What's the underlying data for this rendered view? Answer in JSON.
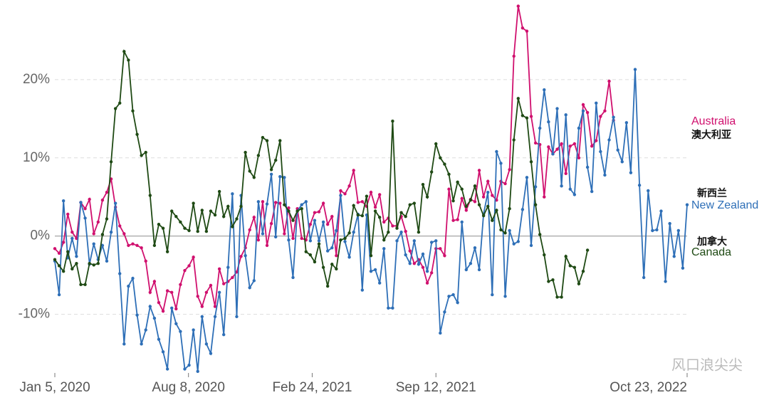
{
  "chart_data": {
    "type": "line",
    "xlim": [
      "2020-01-05",
      "2022-10-23"
    ],
    "xticks": [
      {
        "value": "2020-01-05",
        "label": "Jan 5, 2020"
      },
      {
        "value": "2020-08-08",
        "label": "Aug 8, 2020"
      },
      {
        "value": "2021-02-24",
        "label": "Feb 24, 2021"
      },
      {
        "value": "2021-09-12",
        "label": "Sep 12, 2021"
      },
      {
        "value": "2022-10-23",
        "label": "Oct 23, 2022"
      }
    ],
    "ylim": [
      -17.5,
      30
    ],
    "yticks": [
      {
        "value": -10,
        "label": "-10%"
      },
      {
        "value": 0,
        "label": "0%"
      },
      {
        "value": 10,
        "label": "10%"
      },
      {
        "value": 20,
        "label": "20%"
      }
    ],
    "grid": true,
    "watermark": "风口浪尖尖",
    "x": [
      "2020-01-05",
      "2020-01-12",
      "2020-01-19",
      "2020-01-26",
      "2020-02-02",
      "2020-02-09",
      "2020-02-16",
      "2020-02-23",
      "2020-03-01",
      "2020-03-08",
      "2020-03-15",
      "2020-03-22",
      "2020-03-29",
      "2020-04-05",
      "2020-04-12",
      "2020-04-19",
      "2020-04-26",
      "2020-05-03",
      "2020-05-10",
      "2020-05-17",
      "2020-05-24",
      "2020-05-31",
      "2020-06-07",
      "2020-06-14",
      "2020-06-21",
      "2020-06-28",
      "2020-07-05",
      "2020-07-12",
      "2020-07-19",
      "2020-07-26",
      "2020-08-02",
      "2020-08-09",
      "2020-08-16",
      "2020-08-23",
      "2020-08-30",
      "2020-09-06",
      "2020-09-13",
      "2020-09-20",
      "2020-09-27",
      "2020-10-04",
      "2020-10-11",
      "2020-10-18",
      "2020-10-25",
      "2020-11-01",
      "2020-11-08",
      "2020-11-15",
      "2020-11-22",
      "2020-11-29",
      "2020-12-06",
      "2020-12-13",
      "2020-12-20",
      "2020-12-27",
      "2021-01-03",
      "2021-01-10",
      "2021-01-17",
      "2021-01-24",
      "2021-01-31",
      "2021-02-07",
      "2021-02-14",
      "2021-02-21",
      "2021-02-28",
      "2021-03-07",
      "2021-03-14",
      "2021-03-21",
      "2021-03-28",
      "2021-04-04",
      "2021-04-11",
      "2021-04-18",
      "2021-04-25",
      "2021-05-02",
      "2021-05-09",
      "2021-05-16",
      "2021-05-23",
      "2021-05-30",
      "2021-06-06",
      "2021-06-13",
      "2021-06-20",
      "2021-06-27",
      "2021-07-04",
      "2021-07-11",
      "2021-07-18",
      "2021-07-25",
      "2021-08-01",
      "2021-08-08",
      "2021-08-15",
      "2021-08-22",
      "2021-08-29",
      "2021-09-05",
      "2021-09-12",
      "2021-09-19",
      "2021-09-26",
      "2021-10-03",
      "2021-10-10",
      "2021-10-17",
      "2021-10-24",
      "2021-10-31",
      "2021-11-07",
      "2021-11-14",
      "2021-11-21",
      "2021-11-28",
      "2021-12-05",
      "2021-12-12",
      "2021-12-19",
      "2021-12-26",
      "2022-01-02",
      "2022-01-09",
      "2022-01-16",
      "2022-01-23",
      "2022-01-30",
      "2022-02-06",
      "2022-02-13",
      "2022-02-20",
      "2022-02-27",
      "2022-03-06",
      "2022-03-13",
      "2022-03-20",
      "2022-03-27",
      "2022-04-03",
      "2022-04-10",
      "2022-04-17",
      "2022-04-24",
      "2022-05-01",
      "2022-05-08",
      "2022-05-15",
      "2022-05-22",
      "2022-05-29",
      "2022-06-05",
      "2022-06-12",
      "2022-06-19",
      "2022-06-26",
      "2022-07-03",
      "2022-07-10",
      "2022-07-17",
      "2022-07-24",
      "2022-07-31",
      "2022-08-07",
      "2022-08-14",
      "2022-08-21",
      "2022-08-28",
      "2022-09-04",
      "2022-09-11",
      "2022-09-18",
      "2022-09-25",
      "2022-10-02",
      "2022-10-09",
      "2022-10-16",
      "2022-10-23"
    ],
    "series": [
      {
        "name": "Australia",
        "name_zh": "澳大利亚",
        "color": "#d0106e",
        "values": [
          -1.6,
          -2.2,
          -0.8,
          2.8,
          0.5,
          -0.3,
          4.3,
          3.5,
          4.7,
          0.3,
          1.8,
          4.6,
          5.6,
          7.3,
          3.7,
          1.3,
          0.3,
          -1.2,
          -1.0,
          -1.2,
          -1.5,
          -3.2,
          -7.2,
          -5.8,
          -8.5,
          -9.6,
          -7.0,
          -7.2,
          -9.3,
          -6.2,
          -4.4,
          -3.8,
          -2.7,
          -7.7,
          -9.0,
          -7.2,
          -6.3,
          -9.0,
          -4.2,
          -6.1,
          -5.8,
          -5.3,
          -4.6,
          -2.6,
          -1.5,
          0.8,
          2.4,
          -0.5,
          4.4,
          -1.2,
          1.6,
          4.3,
          4.2,
          0.3,
          3.6,
          -0.3,
          3.5,
          -0.3,
          -0.5,
          1.5,
          3.0,
          3.1,
          4.2,
          1.5,
          2.5,
          -2.5,
          5.8,
          5.4,
          6.4,
          8.4,
          4.3,
          4.4,
          3.8,
          5.6,
          3.7,
          5.3,
          1.8,
          2.3,
          1.3,
          1.3,
          2.5,
          0.6,
          -1.9,
          -3.5,
          -3.0,
          -4.0,
          -6.0,
          -4.7,
          -1.6,
          -1.6,
          -2.5,
          6.0,
          2.0,
          2.1,
          4.8,
          3.3,
          4.7,
          4.4,
          8.4,
          5.0,
          7.0,
          5.2,
          4.6,
          7.0,
          6.7,
          8.5,
          23.0,
          29.4,
          26.6,
          26.2,
          15.3,
          11.9,
          11.7,
          5.0,
          11.4,
          10.5,
          11.1,
          11.8,
          8.0,
          11.5,
          11.8,
          10.0,
          16.8,
          15.8,
          11.5,
          12.2,
          15.3,
          16.0,
          19.8,
          14.8,
          null,
          null,
          null,
          null,
          null,
          null,
          null,
          null,
          null,
          null,
          null,
          null,
          null,
          null,
          null,
          null,
          null
        ]
      },
      {
        "name": "New Zealand",
        "name_zh": "新西兰",
        "color": "#2e6fb7",
        "values": [
          -3.2,
          -7.5,
          4.5,
          -2.8,
          -0.3,
          -2.6,
          4.3,
          2.3,
          -3.6,
          -1.0,
          -3.0,
          -1.2,
          -3.2,
          0.5,
          4.2,
          -4.8,
          -13.8,
          -6.4,
          -5.4,
          -10.1,
          -13.8,
          -12.0,
          -9.0,
          -10.5,
          -13.2,
          -14.8,
          -17.0,
          -9.2,
          -11.2,
          -12.2,
          -17.0,
          -16.5,
          -12.0,
          -17.3,
          -10.3,
          -13.8,
          -15.0,
          -10.3,
          -7.2,
          -12.6,
          -4.0,
          5.4,
          -10.3,
          5.2,
          -2.5,
          -6.6,
          -5.7,
          4.4,
          0.3,
          4.1,
          7.9,
          -0.1,
          7.6,
          7.5,
          -0.5,
          -5.3,
          3.2,
          4.0,
          4.4,
          -0.6,
          2.0,
          -0.6,
          1.8,
          -1.9,
          -1.5,
          0.7,
          5.2,
          -0.7,
          -2.7,
          0.5,
          2.8,
          -6.9,
          2.7,
          -4.5,
          -4.3,
          -6.0,
          -1.6,
          -9.2,
          -9.2,
          -0.6,
          0.5,
          -2.4,
          -3.5,
          -0.6,
          -3.6,
          -2.3,
          -4.5,
          -0.8,
          -0.6,
          -12.4,
          -9.7,
          -7.7,
          -7.5,
          -8.5,
          1.8,
          -4.3,
          -3.5,
          -1.5,
          -4.3,
          2.8,
          5.6,
          -7.5,
          10.8,
          9.3,
          -7.7,
          0.7,
          -1.0,
          -0.7,
          3.4,
          7.5,
          -1.2,
          6.3,
          13.8,
          18.7,
          14.6,
          10.5,
          16.3,
          6.4,
          15.5,
          6.0,
          5.3,
          13.8,
          16.0,
          8.8,
          5.7,
          17.0,
          10.8,
          7.8,
          12.3,
          15.2,
          11.0,
          9.5,
          14.5,
          8.1,
          21.3,
          6.5,
          -5.3,
          5.8,
          0.7,
          0.8,
          3.2,
          -5.8,
          1.6,
          -2.6,
          0.7,
          -4.1,
          4.0
        ]
      },
      {
        "name": "Canada",
        "name_zh": "加拿大",
        "color": "#1f4a14",
        "values": [
          -3.0,
          -3.8,
          -4.5,
          -2.0,
          -4.2,
          -3.5,
          -6.2,
          -6.2,
          -3.5,
          -3.7,
          -3.5,
          0.2,
          2.2,
          9.5,
          16.3,
          17.0,
          23.6,
          22.5,
          16.0,
          13.0,
          10.3,
          10.7,
          5.2,
          -1.2,
          1.5,
          1.0,
          -2.0,
          3.2,
          2.5,
          1.8,
          1.0,
          0.7,
          4.2,
          0.6,
          3.3,
          0.6,
          3.2,
          2.7,
          5.7,
          2.5,
          3.8,
          1.2,
          2.2,
          3.8,
          10.7,
          8.3,
          7.5,
          10.3,
          12.6,
          12.2,
          8.5,
          9.7,
          12.2,
          4.0,
          3.2,
          2.0,
          3.2,
          3.5,
          -2.0,
          -2.4,
          -3.3,
          -1.0,
          -4.0,
          -6.4,
          -3.6,
          -4.2,
          -0.5,
          -0.3,
          0.4,
          3.9,
          2.7,
          2.6,
          5.1,
          -2.5,
          3.2,
          2.4,
          -0.5,
          0.5,
          14.7,
          1.0,
          3.0,
          2.5,
          4.0,
          4.2,
          0.5,
          6.6,
          5.0,
          8.2,
          11.8,
          10.0,
          9.2,
          7.9,
          4.5,
          6.9,
          6.0,
          3.8,
          4.6,
          6.4,
          4.0,
          2.6,
          3.8,
          2.0,
          3.3,
          0.8,
          0.4,
          3.5,
          12.3,
          17.6,
          15.4,
          15.1,
          9.5,
          4.0,
          0.2,
          -2.4,
          -5.8,
          -5.6,
          -7.8,
          -7.8,
          -2.6,
          -3.8,
          -4.0,
          -6.1,
          -4.5,
          -1.8,
          null,
          null,
          null,
          null,
          null,
          null,
          null,
          null,
          null,
          null,
          null,
          null,
          null,
          null,
          null,
          null,
          null,
          null,
          null,
          null,
          null,
          null,
          null
        ]
      }
    ]
  }
}
